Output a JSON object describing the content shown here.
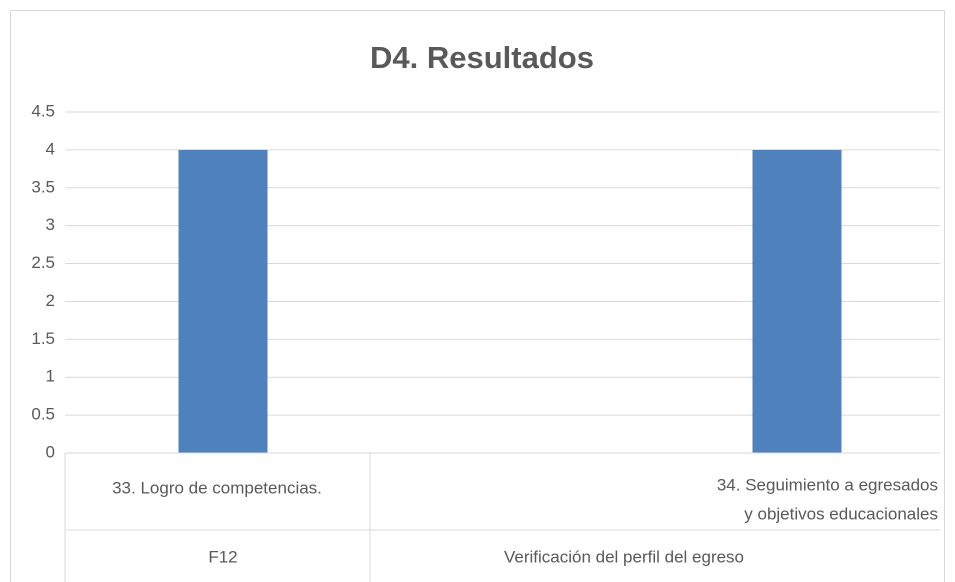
{
  "chart_data": {
    "type": "bar",
    "title": "D4. Resultados",
    "categories": [
      "33. Logro de competencias.",
      [
        "34. Seguimiento a egresados",
        "y objetivos educacionales"
      ]
    ],
    "groups": [
      "F12",
      "Verificación del perfil del egreso"
    ],
    "values": [
      4,
      4
    ],
    "color": "#4f81bd",
    "ylim": [
      0,
      4.5
    ],
    "yticks": [
      0,
      0.5,
      1,
      1.5,
      2,
      2.5,
      3,
      3.5,
      4,
      4.5
    ],
    "grid": true
  }
}
